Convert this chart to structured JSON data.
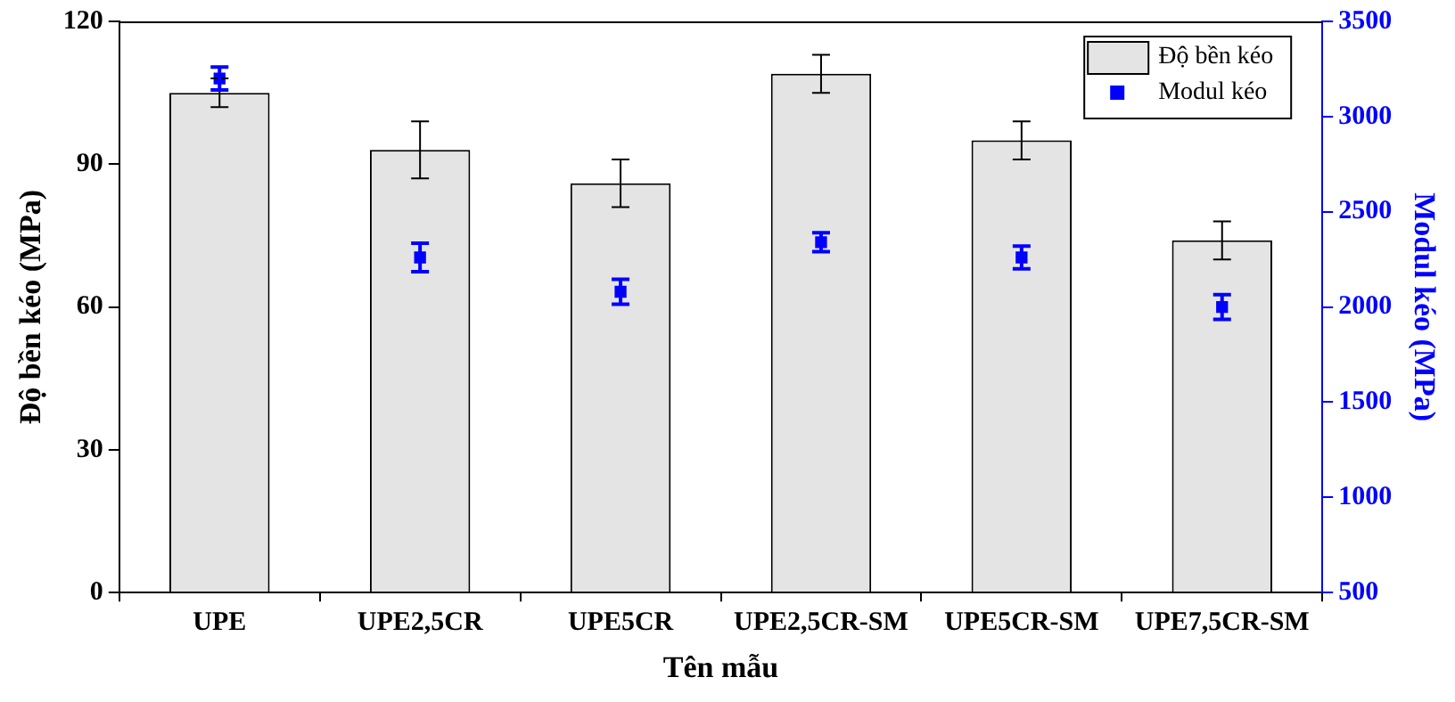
{
  "chart_data": {
    "type": "bar",
    "xlabel": "Tên mẫu",
    "ylabel": "Độ bền kéo (MPa)",
    "y2label": "Modul kéo (MPa)",
    "categories": [
      "UPE",
      "UPE2,5CR",
      "UPE5CR",
      "UPE2,5CR-SM",
      "UPE5CR-SM",
      "UPE7,5CR-SM"
    ],
    "series": [
      {
        "name": "Độ bền kéo",
        "color": "#e4e4e4",
        "values": [
          105,
          93,
          86,
          109,
          95,
          74
        ],
        "errors": [
          3,
          6,
          5,
          4,
          4,
          4
        ]
      },
      {
        "name": "Modul kéo",
        "type": "scatter",
        "axis": "y2",
        "color": "#0000ff",
        "marker": "square",
        "x": [
          "UPE",
          "UPE2,5CR",
          "UPE5CR",
          "UPE2,5CR-SM",
          "UPE5CR-SM",
          "UPE7,5CR-SM"
        ],
        "values": [
          3200,
          2260,
          2080,
          2340,
          2260,
          2000
        ],
        "errors": [
          60,
          75,
          65,
          50,
          60,
          65
        ]
      }
    ],
    "ylim": [
      0,
      120
    ],
    "yticks": [
      0,
      30,
      60,
      90,
      120
    ],
    "y2lim": [
      500,
      3500
    ],
    "y2ticks": [
      500,
      1000,
      1500,
      2000,
      2500,
      3000,
      3500
    ],
    "grid": false,
    "legend": "top right"
  }
}
